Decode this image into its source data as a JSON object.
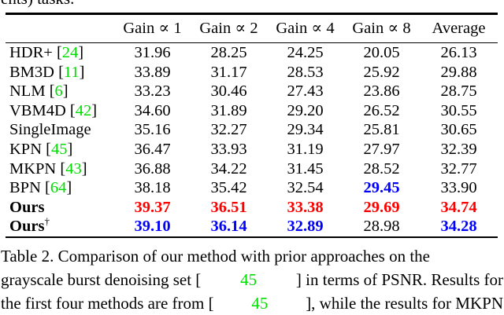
{
  "page": {
    "clipped_top_text": "ents) tasks."
  },
  "colors": {
    "citation_green": "#00dd00",
    "best_red": "#ff0000",
    "second_blue": "#0000ff",
    "text": "#000000",
    "background": "#ffffff"
  },
  "table": {
    "headers": [
      "",
      "Gain ∝ 1",
      "Gain ∝ 2",
      "Gain ∝ 4",
      "Gain ∝ 8",
      "Average"
    ],
    "rows": [
      {
        "method": "HDR+",
        "br_open": " [",
        "cite": "24",
        "br_close": "]",
        "values": [
          "31.96",
          "28.25",
          "24.25",
          "20.05",
          "26.13"
        ],
        "cell_classes": [
          "",
          "",
          "",
          "",
          ""
        ]
      },
      {
        "method": "BM3D",
        "br_open": " [",
        "cite": "11",
        "br_close": "]",
        "values": [
          "33.89",
          "31.17",
          "28.53",
          "25.92",
          "29.88"
        ],
        "cell_classes": [
          "",
          "",
          "",
          "",
          ""
        ]
      },
      {
        "method": "NLM",
        "br_open": " [",
        "cite": "6",
        "br_close": "]",
        "values": [
          "33.23",
          "30.46",
          "27.43",
          "23.86",
          "28.75"
        ],
        "cell_classes": [
          "",
          "",
          "",
          "",
          ""
        ]
      },
      {
        "method": "VBM4D",
        "br_open": " [",
        "cite": "42",
        "br_close": "]",
        "values": [
          "34.60",
          "31.89",
          "29.20",
          "26.52",
          "30.55"
        ],
        "cell_classes": [
          "",
          "",
          "",
          "",
          ""
        ]
      },
      {
        "method": "SingleImage",
        "values": [
          "35.16",
          "32.27",
          "29.34",
          "25.81",
          "30.65"
        ],
        "cell_classes": [
          "",
          "",
          "",
          "",
          ""
        ]
      },
      {
        "method": "KPN",
        "br_open": " [",
        "cite": "45",
        "br_close": "]",
        "values": [
          "36.47",
          "33.93",
          "31.19",
          "27.97",
          "32.39"
        ],
        "cell_classes": [
          "",
          "",
          "",
          "",
          ""
        ]
      },
      {
        "method": "MKPN",
        "br_open": " [",
        "cite": "43",
        "br_close": "]",
        "values": [
          "36.88",
          "34.22",
          "31.45",
          "28.52",
          "32.77"
        ],
        "cell_classes": [
          "",
          "",
          "",
          "",
          ""
        ]
      },
      {
        "method": "BPN",
        "br_open": " [",
        "cite": "64",
        "br_close": "]",
        "values": [
          "38.18",
          "35.42",
          "32.54",
          "29.45",
          "33.90"
        ],
        "cell_classes": [
          "",
          "",
          "",
          "second",
          ""
        ]
      },
      {
        "method": "Ours",
        "method_class": "bold",
        "values": [
          "39.37",
          "36.51",
          "33.38",
          "29.69",
          "34.74"
        ],
        "cell_classes": [
          "best",
          "best",
          "best",
          "best",
          "best"
        ]
      },
      {
        "method": "Ours",
        "sup": "†",
        "method_class": "bold",
        "values": [
          "39.10",
          "36.14",
          "32.89",
          "28.98",
          "34.28"
        ],
        "cell_classes": [
          "second",
          "second",
          "second",
          "",
          "second"
        ]
      }
    ]
  },
  "caption": {
    "lines": [
      {
        "segs": [
          {
            "t": "Table 2. Comparison of our method with prior approaches on the"
          }
        ]
      },
      {
        "segs": [
          {
            "t": "grayscale burst denoising set ["
          },
          {
            "t": "45",
            "c": "cite"
          },
          {
            "t": "] in terms of PSNR. Results for"
          }
        ]
      },
      {
        "segs": [
          {
            "t": "the first four methods are from ["
          },
          {
            "t": "45",
            "c": "cite"
          },
          {
            "t": "], while the results for MKPN"
          }
        ]
      }
    ]
  }
}
